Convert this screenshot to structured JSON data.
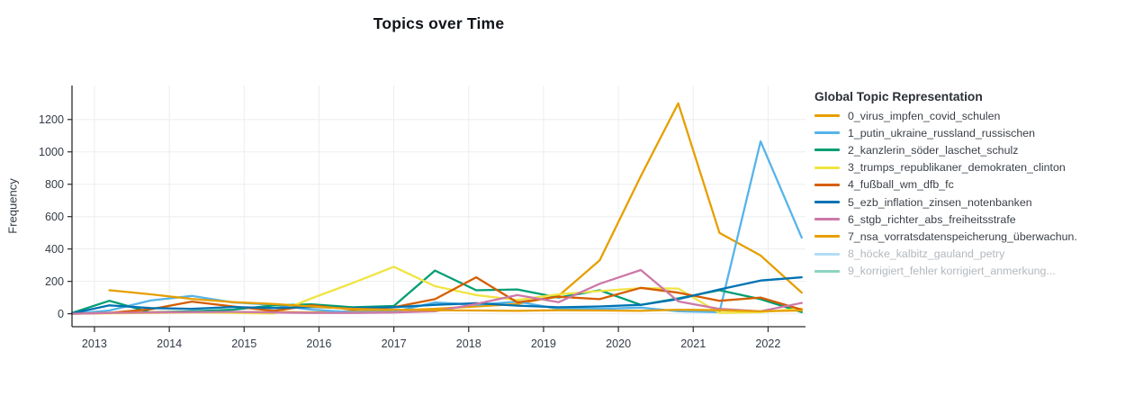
{
  "title": "Topics over Time",
  "y_axis": {
    "label": "Frequency",
    "ticks": [
      0,
      200,
      400,
      600,
      800,
      1000,
      1200
    ]
  },
  "x_axis": {
    "ticks": [
      2013,
      2014,
      2015,
      2016,
      2017,
      2018,
      2019,
      2020,
      2021,
      2022
    ]
  },
  "legend": {
    "title": "Global Topic Representation",
    "items": [
      {
        "label": "0_virus_impfen_covid_schulen",
        "color": "#E69F00",
        "active": true
      },
      {
        "label": "1_putin_ukraine_russland_russischen",
        "color": "#56B4E9",
        "active": true
      },
      {
        "label": "2_kanzlerin_söder_laschet_schulz",
        "color": "#009E73",
        "active": true
      },
      {
        "label": "3_trumps_republikaner_demokraten_clinton",
        "color": "#F0E442",
        "active": true
      },
      {
        "label": "4_fußball_wm_dfb_fc",
        "color": "#D55E00",
        "active": true
      },
      {
        "label": "5_ezb_inflation_zinsen_notenbanken",
        "color": "#0072B2",
        "active": true
      },
      {
        "label": "6_stgb_richter_abs_freiheitsstrafe",
        "color": "#CC79A7",
        "active": true
      },
      {
        "label": "7_nsa_vorratsdatenspeicherung_überwachun.",
        "color": "#E69F00",
        "active": true
      },
      {
        "label": "8_höcke_kalbitz_gauland_petry",
        "color": "#56B4E9",
        "active": false
      },
      {
        "label": "9_korrigiert_fehler korrigiert_anmerkung...",
        "color": "#009E73",
        "active": false
      }
    ]
  },
  "chart_data": {
    "type": "line",
    "title": "Topics over Time",
    "xlabel": "",
    "ylabel": "Frequency",
    "xlim": [
      2012.7,
      2022.5
    ],
    "ylim": [
      -80,
      1410
    ],
    "grid": true,
    "legend_position": "right",
    "x": [
      2012.7,
      2013.2,
      2013.75,
      2014.3,
      2014.85,
      2015.4,
      2015.9,
      2016.45,
      2017.0,
      2017.55,
      2018.1,
      2018.65,
      2019.2,
      2019.75,
      2020.3,
      2020.8,
      2021.35,
      2021.9,
      2022.45
    ],
    "series": [
      {
        "name": "0_virus_impfen_covid_schulen",
        "color": "#E69F00",
        "values": [
          2,
          6,
          10,
          14,
          10,
          12,
          8,
          15,
          20,
          30,
          45,
          60,
          110,
          330,
          850,
          1300,
          500,
          360,
          130
        ]
      },
      {
        "name": "1_putin_ukraine_russland_russischen",
        "color": "#56B4E9",
        "values": [
          0,
          20,
          82,
          110,
          70,
          55,
          25,
          10,
          12,
          70,
          55,
          75,
          30,
          30,
          38,
          15,
          10,
          1065,
          470
        ]
      },
      {
        "name": "2_kanzlerin_söder_laschet_schulz",
        "color": "#009E73",
        "values": [
          5,
          80,
          8,
          15,
          25,
          52,
          58,
          40,
          48,
          267,
          145,
          150,
          100,
          145,
          55,
          95,
          145,
          90,
          10
        ]
      },
      {
        "name": "3_trumps_republikaner_demokraten_clinton",
        "color": "#F0E442",
        "values": [
          0,
          3,
          5,
          8,
          5,
          2,
          95,
          190,
          290,
          170,
          115,
          85,
          120,
          140,
          158,
          156,
          5,
          10,
          32
        ]
      },
      {
        "name": "4_fußball_wm_dfb_fc",
        "color": "#D55E00",
        "values": [
          0,
          5,
          28,
          75,
          45,
          18,
          52,
          26,
          40,
          90,
          225,
          70,
          105,
          90,
          160,
          130,
          80,
          100,
          25
        ]
      },
      {
        "name": "5_ezb_inflation_zinsen_notenbanken",
        "color": "#0072B2",
        "values": [
          2,
          52,
          35,
          30,
          42,
          35,
          42,
          35,
          40,
          55,
          65,
          50,
          40,
          45,
          55,
          90,
          150,
          205,
          225
        ]
      },
      {
        "name": "6_stgb_richter_abs_freiheitsstrafe",
        "color": "#CC79A7",
        "values": [
          0,
          5,
          8,
          10,
          12,
          8,
          5,
          5,
          8,
          15,
          60,
          115,
          71,
          185,
          270,
          76,
          30,
          15,
          67
        ]
      },
      {
        "name": "7_nsa_vorratsdatenspeicherung_überwachun.",
        "color": "#E69F00",
        "values": [
          null,
          145,
          120,
          92,
          72,
          60,
          45,
          30,
          25,
          22,
          20,
          18,
          22,
          20,
          18,
          25,
          22,
          15,
          20
        ]
      }
    ],
    "hidden_series": [
      "8_höcke_kalbitz_gauland_petry",
      "9_korrigiert_fehler korrigiert_anmerkung..."
    ]
  }
}
